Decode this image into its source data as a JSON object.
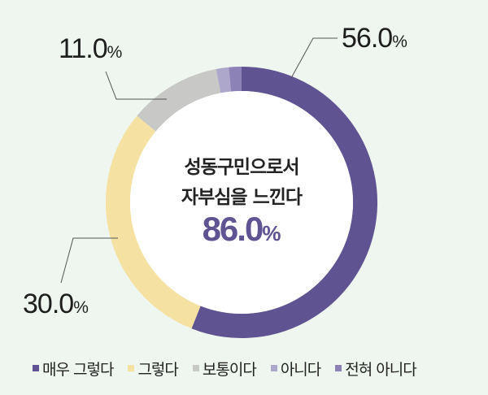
{
  "chart_data": {
    "type": "pie",
    "subtype": "donut",
    "title": "성동구민으로서 자부심을 느낀다",
    "center_value": "86.0",
    "center_unit": "%",
    "categories": [
      "매우 그렇다",
      "그렇다",
      "보통이다",
      "아니다",
      "전혀 아니다"
    ],
    "values": [
      56.0,
      30.0,
      11.0,
      1.5,
      1.5
    ],
    "colors": [
      "#5f5391",
      "#f5e2a3",
      "#c8c8c6",
      "#aea7cc",
      "#8c82b5"
    ],
    "data_labels": [
      {
        "category": "매우 그렇다",
        "text": "56.0",
        "unit": "%"
      },
      {
        "category": "그렇다",
        "text": "30.0",
        "unit": "%"
      },
      {
        "category": "보통이다",
        "text": "11.0",
        "unit": "%"
      }
    ],
    "legend_position": "bottom",
    "start_angle": "12 o'clock, clockwise"
  },
  "center": {
    "line1": "성동구민으로서",
    "line2": "자부심을 느낀다",
    "value": "86.0",
    "unit": "%"
  },
  "labels": {
    "very_agree": {
      "value": "56.0",
      "unit": "%"
    },
    "agree": {
      "value": "30.0",
      "unit": "%"
    },
    "neutral": {
      "value": "11.0",
      "unit": "%"
    }
  },
  "legend": [
    {
      "label": "매우 그렇다",
      "color": "#5f5391"
    },
    {
      "label": "그렇다",
      "color": "#f5e2a3"
    },
    {
      "label": "보통이다",
      "color": "#c8c8c6"
    },
    {
      "label": "아니다",
      "color": "#aea7cc"
    },
    {
      "label": "전혀 아니다",
      "color": "#8c82b5"
    }
  ],
  "colors": {
    "background": "#eff6ef",
    "accent": "#5f5391",
    "leader_line": "#555555"
  }
}
